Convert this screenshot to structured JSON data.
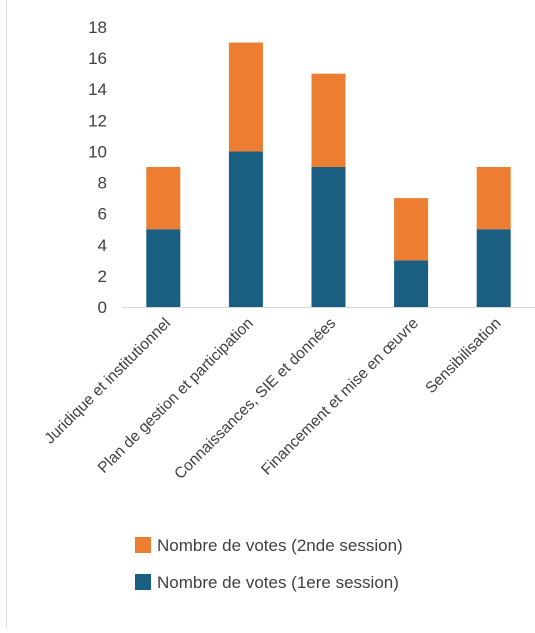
{
  "chart_data": {
    "type": "bar",
    "stacked": true,
    "title": "",
    "xlabel": "",
    "ylabel": "",
    "ylim": [
      0,
      18
    ],
    "yticks": [
      0,
      2,
      4,
      6,
      8,
      10,
      12,
      14,
      16,
      18
    ],
    "grid": false,
    "legend_position": "bottom",
    "categories": [
      "Juridique et institutionnel",
      "Plan de gestion et participation",
      "Connaissances, SIE et données",
      "Financement et mise en œuvre",
      "Sensibilisation"
    ],
    "series": [
      {
        "name": "Nombre de votes (1ere session)",
        "color": "#1a5f82",
        "values": [
          5,
          10,
          9,
          3,
          5
        ]
      },
      {
        "name": "Nombre de votes (2nde session)",
        "color": "#ed7d31",
        "values": [
          4,
          7,
          6,
          4,
          4
        ]
      }
    ],
    "legend_order": [
      1,
      0
    ]
  }
}
